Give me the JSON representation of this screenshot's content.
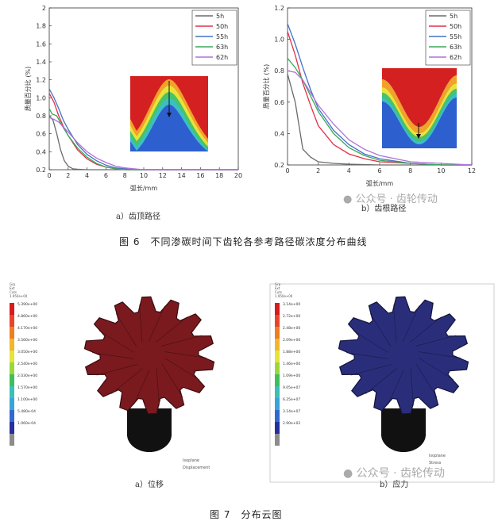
{
  "chart_data": [
    {
      "type": "line",
      "panel": "a",
      "ylabel": "质量百分比 (%)",
      "xlabel": "弧长/mm",
      "xlim": [
        0,
        20
      ],
      "ylim": [
        0.2,
        2
      ],
      "xticks": [
        0,
        2,
        4,
        6,
        8,
        10,
        12,
        14,
        16,
        18,
        20
      ],
      "yticks": [
        0.2,
        0.4,
        0.6,
        0.8,
        1.0,
        1.2,
        1.4,
        1.6,
        1.8,
        2
      ],
      "ytick_labels": [
        "0.2",
        "0.4",
        "0.6",
        "0.8",
        "1.0",
        "1.2",
        "1.4",
        "1.6",
        "1.8",
        "2"
      ],
      "legend_position": "top-right",
      "series": [
        {
          "name": "5h",
          "color": "#6a6a6a",
          "x": [
            0,
            0.4,
            0.8,
            1.2,
            1.6,
            2,
            2.5,
            3,
            4,
            6,
            10,
            20
          ],
          "y": [
            0.8,
            0.75,
            0.6,
            0.42,
            0.3,
            0.24,
            0.21,
            0.205,
            0.2,
            0.2,
            0.2,
            0.2
          ]
        },
        {
          "name": "50h",
          "color": "#e0304a",
          "x": [
            0,
            0.5,
            1,
            1.5,
            2,
            3,
            4,
            5,
            6,
            7,
            8,
            10,
            20
          ],
          "y": [
            1.05,
            0.95,
            0.8,
            0.68,
            0.58,
            0.42,
            0.32,
            0.26,
            0.23,
            0.21,
            0.2,
            0.2,
            0.2
          ]
        },
        {
          "name": "55h",
          "color": "#4472c4",
          "x": [
            0,
            0.5,
            1,
            1.5,
            2,
            3,
            4,
            5,
            6,
            7,
            8,
            9,
            10,
            20
          ],
          "y": [
            1.1,
            1.0,
            0.88,
            0.75,
            0.65,
            0.48,
            0.37,
            0.3,
            0.25,
            0.22,
            0.21,
            0.2,
            0.2,
            0.2
          ]
        },
        {
          "name": "63h",
          "color": "#3aa85a",
          "x": [
            0,
            0.3,
            0.8,
            1.3,
            2,
            3,
            4,
            5,
            6,
            7,
            8,
            10,
            20
          ],
          "y": [
            0.88,
            0.82,
            0.8,
            0.7,
            0.58,
            0.44,
            0.34,
            0.27,
            0.23,
            0.21,
            0.2,
            0.2,
            0.2
          ]
        },
        {
          "name": "62h",
          "color": "#b070d8",
          "x": [
            0,
            0.5,
            1,
            2,
            3,
            4,
            5,
            6,
            7,
            8,
            9,
            10,
            20
          ],
          "y": [
            0.78,
            0.76,
            0.73,
            0.62,
            0.5,
            0.4,
            0.33,
            0.28,
            0.24,
            0.22,
            0.21,
            0.2,
            0.2
          ]
        }
      ]
    },
    {
      "type": "line",
      "panel": "b",
      "ylabel": "质量百分比 (%)",
      "xlabel": "弧长/mm",
      "xlim": [
        0,
        12
      ],
      "ylim": [
        0.2,
        1.2
      ],
      "xticks": [
        0,
        2,
        4,
        6,
        8,
        10,
        12
      ],
      "yticks": [
        0.2,
        0.4,
        0.6,
        0.8,
        1.0,
        1.2
      ],
      "ytick_labels": [
        "0.2",
        "0.4",
        "0.6",
        "0.8",
        "1.0",
        "1.2"
      ],
      "legend_position": "top-right",
      "series": [
        {
          "name": "5h",
          "color": "#6a6a6a",
          "x": [
            0,
            0.5,
            1,
            1.5,
            2,
            3,
            4,
            6,
            8,
            12
          ],
          "y": [
            0.78,
            0.6,
            0.3,
            0.25,
            0.22,
            0.21,
            0.205,
            0.2,
            0.2,
            0.2
          ]
        },
        {
          "name": "50h",
          "color": "#e0304a",
          "x": [
            0,
            0.5,
            1,
            1.5,
            2,
            3,
            4,
            5,
            6,
            8,
            10,
            12
          ],
          "y": [
            1.05,
            0.9,
            0.72,
            0.58,
            0.45,
            0.33,
            0.27,
            0.24,
            0.22,
            0.21,
            0.2,
            0.2
          ]
        },
        {
          "name": "55h",
          "color": "#4472c4",
          "x": [
            0,
            0.5,
            1,
            1.5,
            2,
            3,
            4,
            5,
            6,
            8,
            10,
            12
          ],
          "y": [
            1.1,
            0.97,
            0.82,
            0.68,
            0.56,
            0.42,
            0.33,
            0.27,
            0.24,
            0.21,
            0.2,
            0.2
          ]
        },
        {
          "name": "63h",
          "color": "#3aa85a",
          "x": [
            0,
            0.5,
            1,
            1.5,
            2,
            3,
            4,
            5,
            6,
            8,
            10,
            12
          ],
          "y": [
            0.88,
            0.82,
            0.74,
            0.64,
            0.54,
            0.4,
            0.31,
            0.26,
            0.23,
            0.21,
            0.2,
            0.2
          ]
        },
        {
          "name": "62h",
          "color": "#b070d8",
          "x": [
            0,
            0.5,
            1,
            1.5,
            2,
            3,
            4,
            5,
            6,
            8,
            10,
            12
          ],
          "y": [
            0.8,
            0.79,
            0.74,
            0.66,
            0.58,
            0.46,
            0.36,
            0.3,
            0.26,
            0.22,
            0.21,
            0.2
          ]
        }
      ]
    }
  ],
  "captions": {
    "a_top": "a）齿顶路径",
    "b_top": "b）齿根路径",
    "fig6": "图 6　不同渗碳时间下齿轮各参考路径碳浓度分布曲线",
    "a_bottom": "a）位移",
    "b_bottom": "b）应力",
    "fig7": "图 7　分布云图"
  },
  "watermarks": {
    "top": "公众号 · 齿轮传动",
    "bottom": "公众号 · 齿轮传动"
  },
  "contour_left": {
    "header": [
      "Grp",
      "Ext",
      "Cuts",
      "1.950e+00"
    ],
    "values": [
      "5.390e+00",
      "4.860e+00",
      "4.170e+00",
      "3.560e+00",
      "3.050e+00",
      "2.540e+00",
      "2.030e+00",
      "1.570e+00",
      "1.100e+00",
      "5.480e-04",
      "1.060e-04"
    ],
    "foot": [
      "Isoplane",
      "Displacement"
    ]
  },
  "contour_right": {
    "header": [
      "Grp",
      "Ext",
      "Cuts",
      "1.950e+00"
    ],
    "values": [
      "3.14e+00",
      "2.72e+00",
      "2.48e+00",
      "2.09e+00",
      "1.88e+00",
      "1.46e+00",
      "1.09e+00",
      "9.05e+07",
      "6.25e+07",
      "3.14e+07",
      "2.90e+02"
    ],
    "foot": [
      "Isoplane",
      "Stress"
    ]
  },
  "colors": {
    "legend_scale": [
      "#d81b1b",
      "#e6452a",
      "#ef7d21",
      "#f1b62b",
      "#e6e339",
      "#9bd73a",
      "#3fbf5a",
      "#3bbfb9",
      "#3aa4d8",
      "#2f6ad0",
      "#25309e",
      "#8c8c8c"
    ],
    "gear_red": "#7a1a1f",
    "gear_blue": "#2a2e7a"
  }
}
